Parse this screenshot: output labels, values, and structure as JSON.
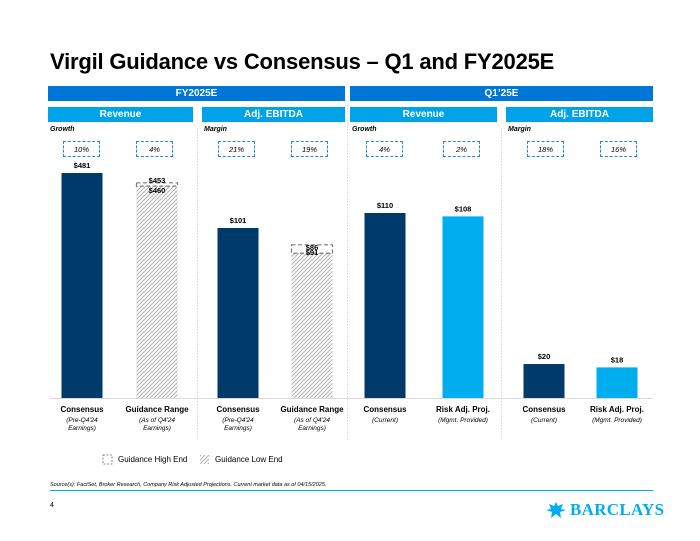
{
  "title": "Virgil Guidance vs Consensus – Q1 and FY2025E",
  "colors": {
    "dark_blue": "#003a6b",
    "light_blue": "#00aeef",
    "header_blue": "#0076d6",
    "sub_blue": "#00a3e8"
  },
  "sections": [
    {
      "label": "FY2025E"
    },
    {
      "label": "Q1’25E"
    }
  ],
  "panels": [
    {
      "header": "Revenue",
      "metric_label": "Growth",
      "pills": [
        "10%",
        "4%"
      ]
    },
    {
      "header": "Adj. EBITDA",
      "metric_label": "Margin",
      "pills": [
        "21%",
        "19%"
      ]
    },
    {
      "header": "Revenue",
      "metric_label": "Growth",
      "pills": [
        "4%",
        "2%"
      ]
    },
    {
      "header": "Adj. EBITDA",
      "metric_label": "Margin",
      "pills": [
        "18%",
        "16%"
      ]
    }
  ],
  "chart_data": {
    "type": "bar",
    "title": "Virgil Guidance vs Consensus – Q1 and FY2025E",
    "bars": [
      {
        "panel": 0,
        "category": "Consensus",
        "note": "(Pre-Q4'24\nEarnings)",
        "value": 481,
        "label": "$481",
        "style": "solid-dark"
      },
      {
        "panel": 0,
        "category": "Guidance Range",
        "note": "(As of Q4'24\nEarnings)",
        "low": 453,
        "high": 460,
        "low_label": "$453",
        "high_label": "$460",
        "style": "range"
      },
      {
        "panel": 1,
        "category": "Consensus",
        "note": "(Pre-Q4'24\nEarnings)",
        "value": 101,
        "label": "$101",
        "style": "solid-dark"
      },
      {
        "panel": 1,
        "category": "Guidance Range",
        "note": "(As of Q4'24\nEarnings)",
        "low": 86,
        "high": 91,
        "low_label": "$86",
        "high_label": "$91",
        "style": "range"
      },
      {
        "panel": 2,
        "category": "Consensus",
        "note": "(Current)",
        "value": 110,
        "label": "$110",
        "style": "solid-dark"
      },
      {
        "panel": 2,
        "category": "Risk Adj. Proj.",
        "note": "(Mgmt. Provided)",
        "value": 108,
        "label": "$108",
        "style": "solid-light"
      },
      {
        "panel": 3,
        "category": "Consensus",
        "note": "(Current)",
        "value": 20,
        "label": "$20",
        "style": "solid-dark"
      },
      {
        "panel": 3,
        "category": "Risk Adj. Proj.",
        "note": "(Mgmt. Provided)",
        "value": 18,
        "label": "$18",
        "style": "solid-light"
      }
    ],
    "legend": [
      "Guidance High End",
      "Guidance Low End"
    ]
  },
  "source": "Source(s): FactSet, Broker Research, Company Risk Adjusted Projections. Current market data as of 04/15/2025.",
  "page_number": "4",
  "brand": "BARCLAYS"
}
